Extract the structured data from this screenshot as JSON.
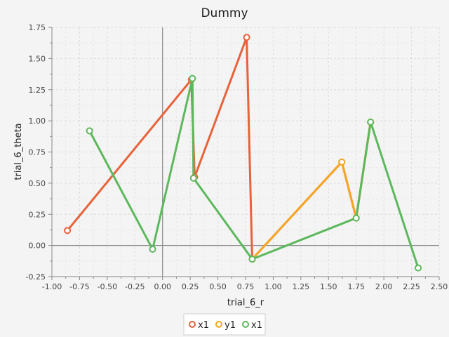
{
  "chart_data": {
    "type": "line",
    "title": "Dummy",
    "xlabel": "trial_6_r",
    "ylabel": "trial_6_theta",
    "xlim": [
      -1.0,
      2.5
    ],
    "ylim": [
      -0.25,
      1.75
    ],
    "x_ticks": [
      "-1.00",
      "-0.75",
      "-0.50",
      "-0.25",
      "0.00",
      "0.25",
      "0.50",
      "0.75",
      "1.00",
      "1.25",
      "1.50",
      "1.75",
      "2.00",
      "2.25",
      "2.50"
    ],
    "y_ticks": [
      "-0.25",
      "0.00",
      "0.25",
      "0.50",
      "0.75",
      "1.00",
      "1.25",
      "1.50",
      "1.75"
    ],
    "grid": true,
    "legend_position": "bottom",
    "series": [
      {
        "name": "x1",
        "color": "#e8623a",
        "points": [
          [
            -0.86,
            0.12
          ],
          [
            0.26,
            1.33
          ],
          [
            0.29,
            0.55
          ],
          [
            0.76,
            1.67
          ],
          [
            0.81,
            -0.11
          ],
          [
            1.62,
            0.67
          ],
          [
            1.75,
            0.22
          ],
          [
            1.88,
            0.99
          ]
        ]
      },
      {
        "name": "y1",
        "color": "#f5a623",
        "points": [
          [
            0.81,
            -0.11
          ],
          [
            1.62,
            0.67
          ],
          [
            1.75,
            0.22
          ],
          [
            1.88,
            0.99
          ]
        ]
      },
      {
        "name": "x1",
        "color": "#5cb85c",
        "points": [
          [
            -0.66,
            0.92
          ],
          [
            -0.09,
            -0.03
          ],
          [
            0.27,
            1.34
          ],
          [
            0.28,
            0.54
          ],
          [
            0.81,
            -0.11
          ],
          [
            1.75,
            0.22
          ],
          [
            1.88,
            0.99
          ],
          [
            2.31,
            -0.18
          ]
        ]
      }
    ]
  }
}
